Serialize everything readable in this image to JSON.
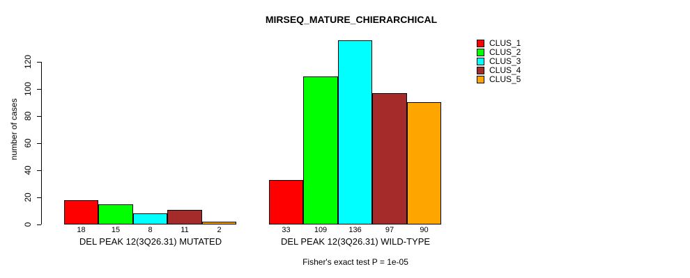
{
  "figure": {
    "background": "#ffffff",
    "text_color": "#000000"
  },
  "chart_data": {
    "type": "bar",
    "title": "MIRSEQ_MATURE_CHIERARCHICAL",
    "ylabel": "number of cases",
    "xlabel": "",
    "ylim": [
      0,
      140
    ],
    "yticks": [
      "0",
      "20",
      "40",
      "60",
      "80",
      "100",
      "120"
    ],
    "ytick_values": [
      0,
      20,
      40,
      60,
      80,
      100,
      120
    ],
    "grid": false,
    "legend_position": "top-right",
    "categories": [
      "DEL PEAK 12(3Q26.31) MUTATED",
      "DEL PEAK 12(3Q26.31) WILD-TYPE"
    ],
    "series": [
      {
        "name": "CLUS_1",
        "color": "#FF0000",
        "values": [
          18,
          33
        ]
      },
      {
        "name": "CLUS_2",
        "color": "#00FF00",
        "values": [
          15,
          109
        ]
      },
      {
        "name": "CLUS_3",
        "color": "#00FFFF",
        "values": [
          8,
          136
        ]
      },
      {
        "name": "CLUS_4",
        "color": "#A52A2A",
        "values": [
          11,
          97
        ]
      },
      {
        "name": "CLUS_5",
        "color": "#FFA500",
        "values": [
          2,
          90
        ]
      }
    ],
    "value_labels_shown": true,
    "footnote": "Fisher's exact test P = 1e-05"
  }
}
